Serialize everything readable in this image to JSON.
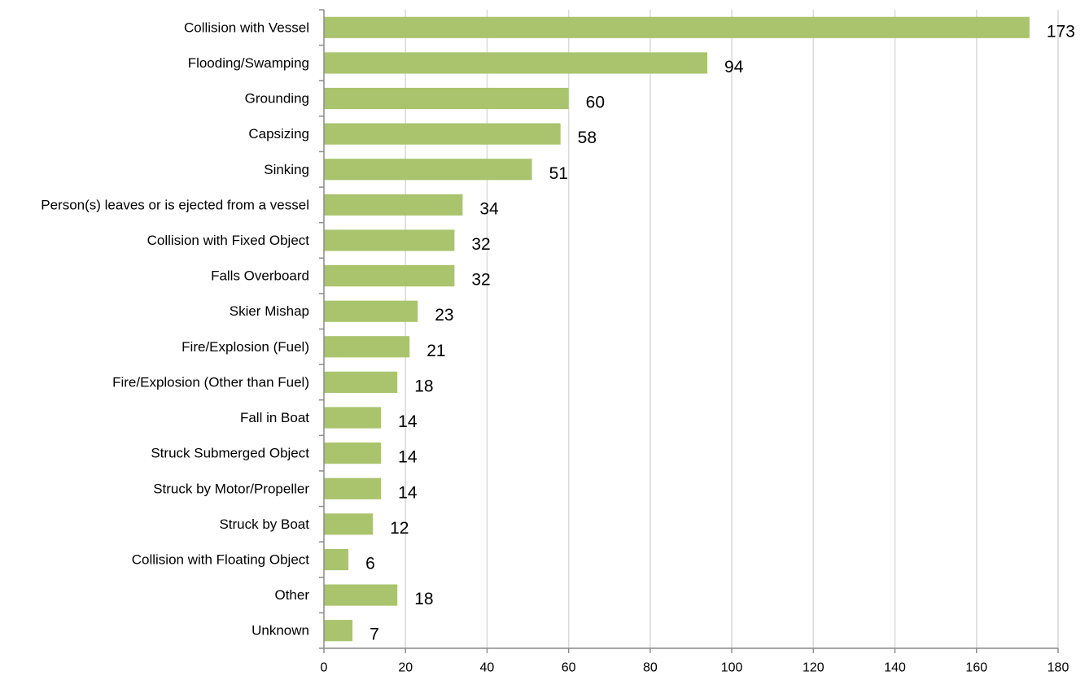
{
  "chart_data": {
    "type": "bar",
    "orientation": "horizontal",
    "categories": [
      "Collision with Vessel",
      "Flooding/Swamping",
      "Grounding",
      "Capsizing",
      "Sinking",
      "Person(s) leaves or is ejected from a vessel",
      "Collision with Fixed Object",
      "Falls Overboard",
      "Skier Mishap",
      "Fire/Explosion (Fuel)",
      "Fire/Explosion (Other than Fuel)",
      "Fall in Boat",
      "Struck Submerged Object",
      "Struck by Motor/Propeller",
      "Struck by Boat",
      "Collision with Floating Object",
      "Other",
      "Unknown"
    ],
    "values": [
      173,
      94,
      60,
      58,
      51,
      34,
      32,
      32,
      23,
      21,
      18,
      14,
      14,
      14,
      12,
      6,
      18,
      7
    ],
    "data_labels": [
      "173",
      "94",
      "60",
      "58",
      "51",
      "34",
      "32",
      "32",
      "23",
      "21",
      "18",
      "14",
      "14",
      "14",
      "12",
      "6",
      "18",
      "7"
    ],
    "xlim": [
      0,
      180
    ],
    "x_ticks": [
      0,
      20,
      40,
      60,
      80,
      100,
      120,
      140,
      160,
      180
    ],
    "x_tick_labels": [
      "0",
      "20",
      "40",
      "60",
      "80",
      "100",
      "120",
      "140",
      "160",
      "180"
    ],
    "grid": "vertical",
    "legend": "none",
    "bar_color": "#a9c46c",
    "grid_color": "#d9d9d9",
    "axis_color": "#8c8c8c",
    "text_color": "#000000"
  }
}
